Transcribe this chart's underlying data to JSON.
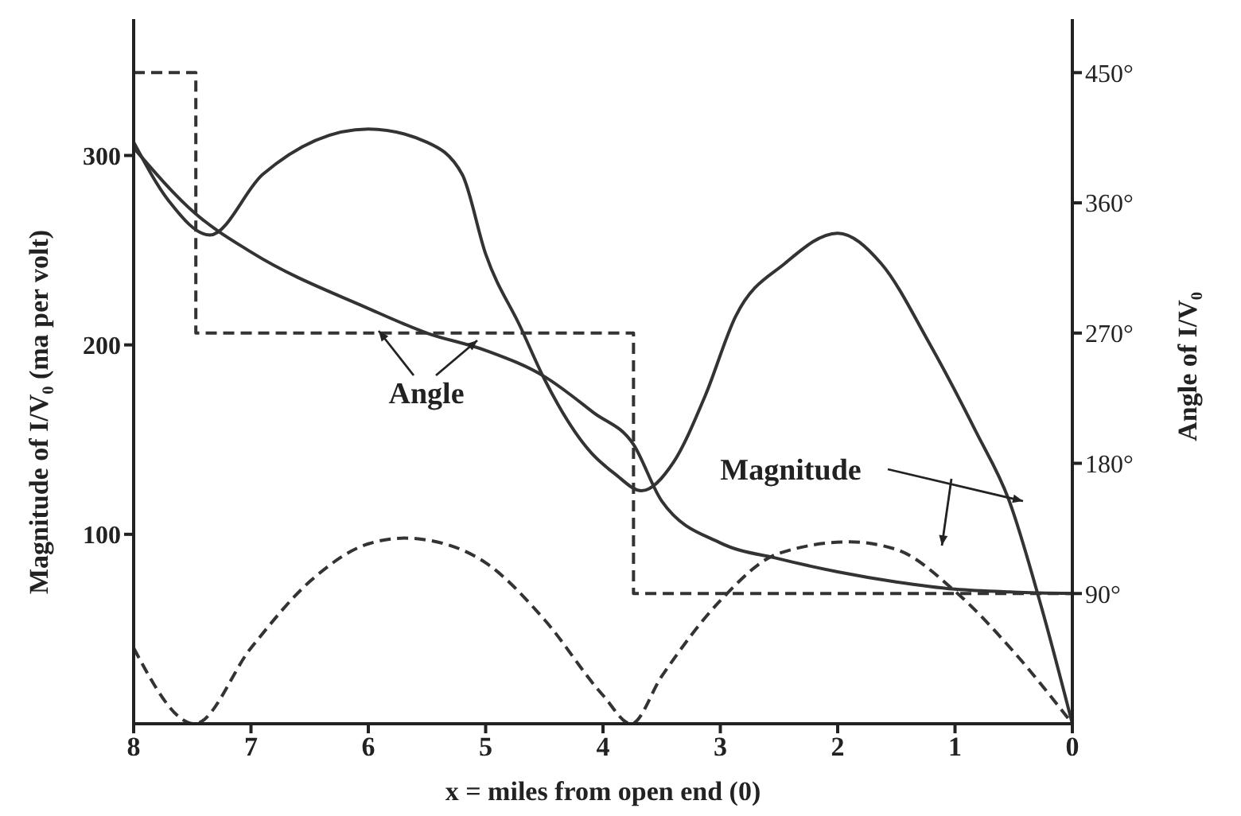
{
  "chart_data": {
    "type": "line",
    "xlabel": "x = miles from open end (0)",
    "ylabel": "Magnitude of I/V₀ (ma per volt)",
    "y2label": "Angle of I/V₀",
    "xlim": [
      8,
      0
    ],
    "xticks": [
      8,
      7,
      6,
      5,
      4,
      3,
      2,
      1,
      0
    ],
    "ylim": [
      0,
      372
    ],
    "yticks": [
      100,
      200,
      300
    ],
    "y2lim": [
      0,
      487
    ],
    "y2ticks": [
      {
        "value": 90,
        "label": "90°"
      },
      {
        "value": 180,
        "label": "180°"
      },
      {
        "value": 270,
        "label": "270°"
      },
      {
        "value": 360,
        "label": "360°"
      },
      {
        "value": 450,
        "label": "450°"
      }
    ],
    "marker": "none",
    "annotations": [
      "Angle",
      "Magnitude"
    ],
    "series": [
      {
        "color": "#333333",
        "line_style": "solid",
        "x": [
          8,
          7.7,
          7.35,
          6.9,
          6,
          5.5,
          5.2,
          5,
          4.7,
          4.5,
          4.1,
          3.9,
          3.67,
          3.4,
          3.13,
          2.87,
          2.45,
          2,
          1.63,
          1.22,
          0.82,
          0.54,
          0.27,
          0
        ],
        "values": [
          307,
          276,
          258,
          290,
          314,
          307,
          290,
          248,
          209,
          182,
          143,
          132,
          123,
          138,
          173,
          215,
          243,
          259,
          243,
          201,
          154,
          118,
          63,
          0
        ]
      },
      {
        "color": "#333333",
        "line_style": "dashed",
        "x": [
          8,
          7.48,
          7,
          6.5,
          6,
          5.69,
          5.5,
          5,
          4.5,
          4,
          3.76,
          3.5,
          3,
          2.5,
          1.9,
          1.5,
          1,
          0.5,
          0
        ],
        "values": [
          40,
          0,
          40,
          75,
          95,
          98,
          97,
          85,
          55,
          15,
          0,
          25,
          65,
          90,
          96,
          92,
          70,
          38,
          0
        ]
      },
      {
        "color": "#333333",
        "line_style": "solid",
        "axis": "y2",
        "x": [
          8,
          7.48,
          7,
          6,
          5.5,
          5,
          4.5,
          4.08,
          3.74,
          3.5,
          3,
          2.5,
          2,
          1.5,
          1,
          0.5,
          0
        ],
        "values": [
          398,
          353,
          326,
          287,
          270,
          258,
          240,
          215,
          193,
          154,
          125,
          114,
          105,
          98,
          93,
          91,
          90
        ]
      },
      {
        "type": "step",
        "color": "#333333",
        "line_style": "dashed",
        "axis": "y2",
        "x": [
          8,
          7.47,
          3.74,
          0
        ],
        "values": [
          450,
          270,
          90,
          90
        ]
      }
    ]
  }
}
